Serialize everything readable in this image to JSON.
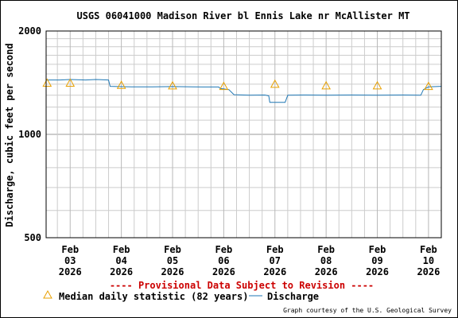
{
  "chart_data": {
    "type": "line",
    "title": "USGS 06041000 Madison River bl Ennis Lake nr McAllister MT",
    "ylabel": "Discharge, cubic feet per second",
    "xlabel": "",
    "yscale": "log",
    "ylim": [
      500,
      2000
    ],
    "ytick_labels": [
      "2000",
      "1000",
      "500"
    ],
    "xlim": [
      -0.47,
      7.25
    ],
    "x_ticks": [
      {
        "day": 0,
        "lines": [
          "Feb",
          "03",
          "2026"
        ]
      },
      {
        "day": 1,
        "lines": [
          "Feb",
          "04",
          "2026"
        ]
      },
      {
        "day": 2,
        "lines": [
          "Feb",
          "05",
          "2026"
        ]
      },
      {
        "day": 3,
        "lines": [
          "Feb",
          "06",
          "2026"
        ]
      },
      {
        "day": 4,
        "lines": [
          "Feb",
          "07",
          "2026"
        ]
      },
      {
        "day": 5,
        "lines": [
          "Feb",
          "08",
          "2026"
        ]
      },
      {
        "day": 6,
        "lines": [
          "Feb",
          "09",
          "2026"
        ]
      },
      {
        "day": 7,
        "lines": [
          "Feb",
          "10",
          "2026"
        ]
      }
    ],
    "grid": true,
    "series": [
      {
        "name": "Discharge",
        "color": "#1f77b4",
        "points": [
          [
            -0.47,
            1440
          ],
          [
            -0.2,
            1440
          ],
          [
            0.0,
            1445
          ],
          [
            0.3,
            1440
          ],
          [
            0.5,
            1445
          ],
          [
            0.75,
            1440
          ],
          [
            0.78,
            1380
          ],
          [
            1.2,
            1375
          ],
          [
            1.6,
            1375
          ],
          [
            2.0,
            1378
          ],
          [
            2.4,
            1375
          ],
          [
            2.9,
            1374
          ],
          [
            2.93,
            1360
          ],
          [
            3.1,
            1350
          ],
          [
            3.2,
            1305
          ],
          [
            3.5,
            1300
          ],
          [
            3.8,
            1302
          ],
          [
            3.88,
            1295
          ],
          [
            3.9,
            1240
          ],
          [
            4.2,
            1240
          ],
          [
            4.25,
            1300
          ],
          [
            4.6,
            1302
          ],
          [
            5.0,
            1300
          ],
          [
            5.5,
            1302
          ],
          [
            6.0,
            1300
          ],
          [
            6.5,
            1302
          ],
          [
            6.85,
            1300
          ],
          [
            6.9,
            1350
          ],
          [
            7.0,
            1375
          ],
          [
            7.25,
            1380
          ]
        ]
      },
      {
        "name": "Median daily statistic (82 years)",
        "marker": "triangle",
        "color": "#e8a000",
        "points": [
          [
            -0.45,
            1410
          ],
          [
            0.0,
            1410
          ],
          [
            1.0,
            1390
          ],
          [
            2.0,
            1385
          ],
          [
            3.0,
            1380
          ],
          [
            4.0,
            1400
          ],
          [
            5.0,
            1385
          ],
          [
            6.0,
            1385
          ],
          [
            7.0,
            1380
          ]
        ]
      }
    ],
    "legend_position": "bottom",
    "legend": [
      {
        "label": "Median daily statistic (82 years)",
        "symbol": "triangle"
      },
      {
        "label": "Discharge",
        "symbol": "line"
      }
    ],
    "annotations": [
      "---- Provisional Data Subject to Revision ----"
    ],
    "credit": "Graph courtesy of the U.S. Geological Survey",
    "colors": {
      "frame": "#000000",
      "grid": "#cccccc",
      "provisional": "#cc0000",
      "discharge": "#1f77b4",
      "median": "#e8a000"
    }
  }
}
